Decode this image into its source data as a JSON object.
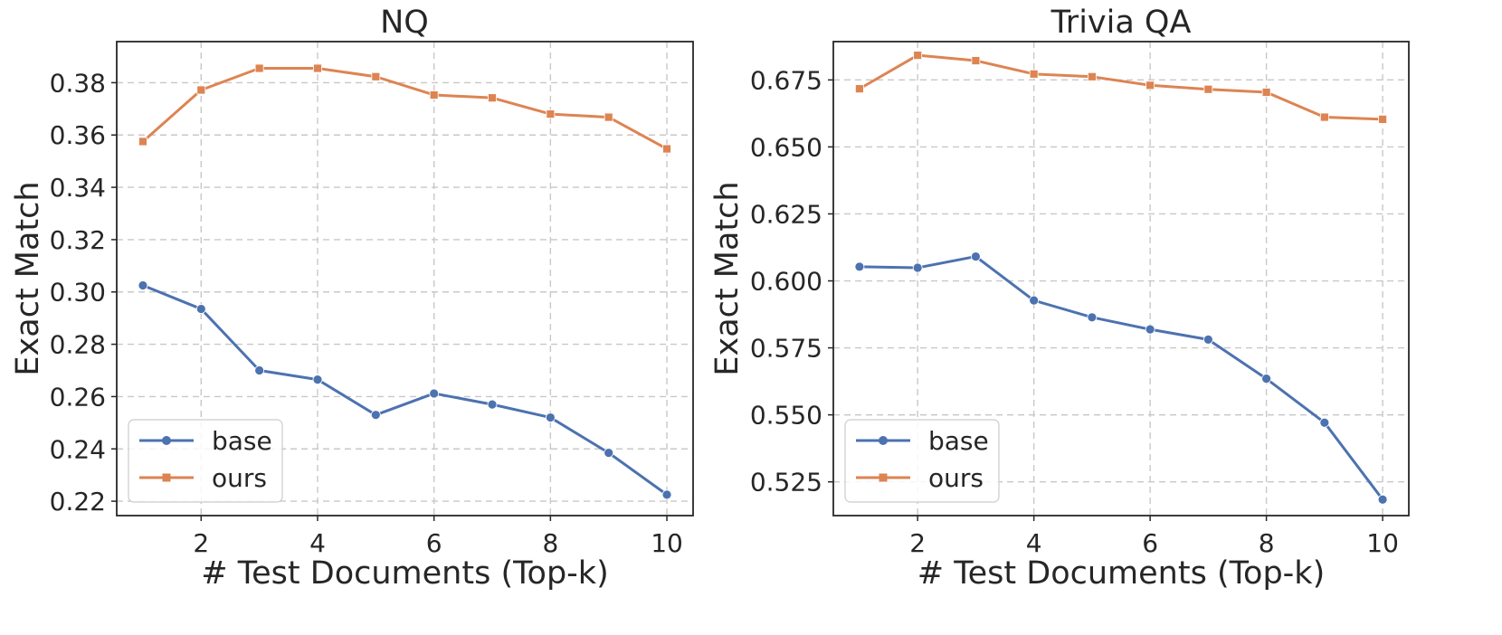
{
  "figure": {
    "colors": {
      "base": "#4c72b0",
      "ours": "#dd8452"
    }
  },
  "chart_data": [
    {
      "type": "line",
      "title": "NQ",
      "xlabel": "# Test Documents (Top-k)",
      "ylabel": "Exact Match",
      "x": [
        1,
        2,
        3,
        4,
        5,
        6,
        7,
        8,
        9,
        10
      ],
      "xlim": [
        0.55,
        10.45
      ],
      "ylim": [
        0.2145,
        0.3957
      ],
      "xticks": [
        2,
        4,
        6,
        8,
        10
      ],
      "xtick_labels": [
        "2",
        "4",
        "6",
        "8",
        "10"
      ],
      "yticks": [
        0.22,
        0.24,
        0.26,
        0.28,
        0.3,
        0.32,
        0.34,
        0.36,
        0.38
      ],
      "ytick_labels": [
        "0.22",
        "0.24",
        "0.26",
        "0.28",
        "0.30",
        "0.32",
        "0.34",
        "0.36",
        "0.38"
      ],
      "grid": true,
      "legend": "lower-left",
      "series": [
        {
          "name": "base",
          "marker": "circle",
          "values": [
            0.3025,
            0.2935,
            0.27,
            0.2665,
            0.253,
            0.2612,
            0.257,
            0.252,
            0.2385,
            0.2225
          ]
        },
        {
          "name": "ours",
          "marker": "square",
          "values": [
            0.3575,
            0.3772,
            0.3855,
            0.3855,
            0.3823,
            0.3753,
            0.3742,
            0.368,
            0.3668,
            0.3547
          ]
        }
      ]
    },
    {
      "type": "line",
      "title": "Trivia QA",
      "xlabel": "# Test Documents (Top-k)",
      "ylabel": "Exact Match",
      "x": [
        1,
        2,
        3,
        4,
        5,
        6,
        7,
        8,
        9,
        10
      ],
      "xlim": [
        0.55,
        10.45
      ],
      "ylim": [
        0.5124,
        0.6893
      ],
      "xticks": [
        2,
        4,
        6,
        8,
        10
      ],
      "xtick_labels": [
        "2",
        "4",
        "6",
        "8",
        "10"
      ],
      "yticks": [
        0.525,
        0.55,
        0.575,
        0.6,
        0.625,
        0.65,
        0.675
      ],
      "ytick_labels": [
        "0.525",
        "0.550",
        "0.575",
        "0.600",
        "0.625",
        "0.650",
        "0.675"
      ],
      "grid": true,
      "legend": "lower-left",
      "series": [
        {
          "name": "base",
          "marker": "circle",
          "values": [
            0.6053,
            0.6049,
            0.6091,
            0.5927,
            0.5864,
            0.5819,
            0.5781,
            0.5635,
            0.5471,
            0.5184
          ]
        },
        {
          "name": "ours",
          "marker": "square",
          "values": [
            0.6717,
            0.6842,
            0.6822,
            0.6772,
            0.6762,
            0.673,
            0.6715,
            0.6704,
            0.6611,
            0.6603
          ]
        }
      ]
    }
  ]
}
